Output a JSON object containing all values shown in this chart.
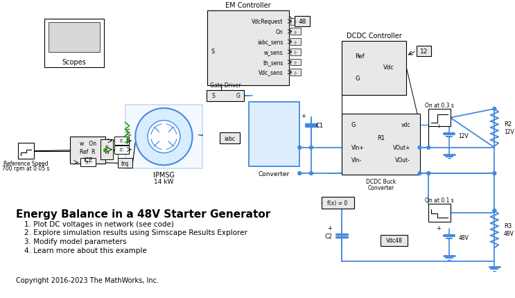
{
  "title": "Energy Balance in a 48V Starter Generator",
  "bullet_points": [
    "1. Plot DC voltages in network (see code)",
    "2. Explore simulation results using Simscape Results Explorer",
    "3. Modify model parameters",
    "4. Learn more about this example"
  ],
  "copyright": "Copyright 2016-2023 The MathWorks, Inc.",
  "bg_color": "#ffffff",
  "text_color": "#000000",
  "blue_color": "#4da6ff",
  "blue_dark": "#0055cc",
  "blue_wire": "#3399ff",
  "green_color": "#33cc00",
  "light_gray": "#d8d8d8",
  "block_fill": "#e8e8e8",
  "white": "#ffffff",
  "black": "#000000"
}
